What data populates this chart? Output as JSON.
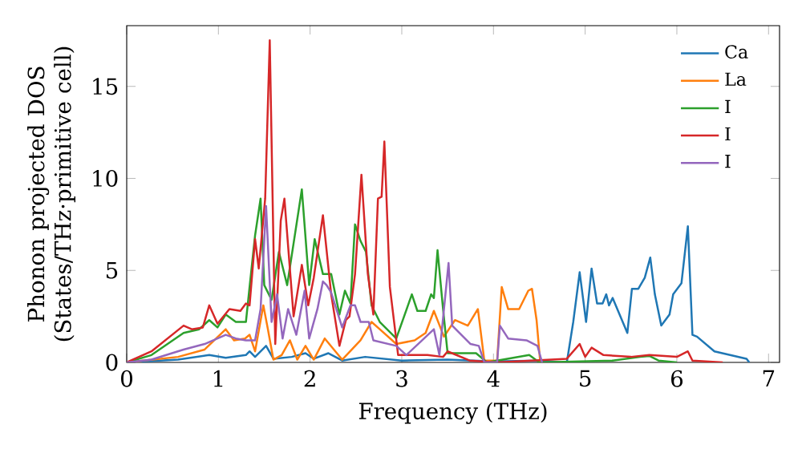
{
  "chart_data": {
    "type": "line",
    "xlabel": "Frequency (THz)",
    "ylabel": "Phonon projected DOS (States/THz·primitive cell)",
    "xlim": [
      0,
      7.12
    ],
    "ylim": [
      0,
      18.3
    ],
    "xticks": [
      0,
      1,
      2,
      3,
      4,
      5,
      6,
      7
    ],
    "yticks": [
      0,
      5,
      10,
      15
    ],
    "grid": false,
    "legend": "top right",
    "marker": "none",
    "line_style": "solid",
    "series": [
      {
        "name": "Ca",
        "color": "#1f77b4",
        "x": [
          0,
          0.56,
          0.9,
          1.08,
          1.3,
          1.34,
          1.4,
          1.52,
          1.6,
          1.8,
          1.95,
          2.04,
          2.2,
          2.35,
          2.6,
          3.0,
          3.5,
          4.0,
          4.5,
          4.75,
          4.8,
          4.87,
          4.94,
          5.01,
          5.07,
          5.13,
          5.19,
          5.23,
          5.26,
          5.3,
          5.46,
          5.51,
          5.58,
          5.65,
          5.71,
          5.76,
          5.83,
          5.92,
          5.96,
          6.05,
          6.12,
          6.17,
          6.22,
          6.41,
          6.76,
          6.79
        ],
        "values": [
          0,
          0.15,
          0.4,
          0.25,
          0.4,
          0.6,
          0.3,
          0.9,
          0.2,
          0.3,
          0.5,
          0.2,
          0.5,
          0.1,
          0.3,
          0.1,
          0.15,
          0.05,
          0.1,
          0,
          0,
          2.2,
          4.9,
          2.2,
          5.1,
          3.2,
          3.2,
          3.7,
          3.1,
          3.5,
          1.6,
          4.0,
          4.0,
          4.6,
          5.7,
          3.7,
          2.0,
          2.6,
          3.7,
          4.3,
          7.4,
          1.5,
          1.4,
          0.6,
          0.2,
          0
        ]
      },
      {
        "name": "La",
        "color": "#ff7f0e",
        "x": [
          0,
          0.56,
          0.85,
          1.08,
          1.17,
          1.29,
          1.34,
          1.4,
          1.49,
          1.54,
          1.6,
          1.69,
          1.78,
          1.86,
          1.95,
          2.04,
          2.16,
          2.35,
          2.55,
          2.67,
          2.76,
          2.94,
          3.14,
          3.26,
          3.35,
          3.46,
          3.58,
          3.72,
          3.83,
          3.9,
          4.04,
          4.09,
          4.16,
          4.28,
          4.38,
          4.42,
          4.47,
          4.51
        ],
        "values": [
          0,
          0.3,
          0.7,
          1.8,
          1.2,
          1.3,
          1.5,
          0.6,
          3.1,
          1.8,
          0.15,
          0.4,
          1.2,
          0.15,
          0.9,
          0.15,
          1.3,
          0.15,
          1.2,
          2.2,
          1.8,
          1.0,
          1.2,
          1.6,
          2.8,
          1.4,
          2.3,
          2.0,
          2.9,
          0.1,
          0.1,
          4.1,
          2.9,
          2.9,
          3.9,
          4.0,
          2.3,
          0
        ]
      },
      {
        "name": "I",
        "color": "#2ca02c",
        "x": [
          0,
          0.27,
          0.62,
          0.79,
          0.9,
          0.99,
          1.08,
          1.19,
          1.3,
          1.34,
          1.4,
          1.46,
          1.5,
          1.58,
          1.66,
          1.75,
          1.91,
          1.99,
          2.05,
          2.14,
          2.23,
          2.32,
          2.38,
          2.44,
          2.49,
          2.55,
          2.61,
          2.67,
          2.76,
          2.94,
          3.11,
          3.17,
          3.26,
          3.32,
          3.35,
          3.39,
          3.45,
          3.5,
          3.81,
          3.93,
          4.04,
          4.39,
          4.5,
          5.3,
          5.6,
          5.7,
          5.8,
          6.0
        ],
        "values": [
          0,
          0.4,
          1.6,
          1.8,
          2.3,
          1.9,
          2.6,
          2.2,
          2.2,
          4.1,
          6.9,
          8.9,
          4.2,
          3.4,
          6.0,
          4.2,
          9.4,
          4.2,
          6.7,
          4.8,
          4.8,
          2.6,
          3.9,
          3.2,
          7.5,
          6.6,
          6.0,
          3.1,
          2.2,
          1.3,
          3.7,
          2.8,
          2.8,
          3.7,
          3.5,
          6.1,
          2.9,
          0.5,
          0.5,
          0,
          0.1,
          0.4,
          0,
          0.1,
          0.3,
          0.35,
          0.1,
          0
        ]
      },
      {
        "name": "I",
        "color": "#d62728",
        "x": [
          0,
          0.27,
          0.62,
          0.71,
          0.83,
          0.9,
          0.99,
          1.12,
          1.24,
          1.3,
          1.34,
          1.4,
          1.44,
          1.51,
          1.56,
          1.62,
          1.68,
          1.72,
          1.82,
          1.91,
          1.98,
          2.04,
          2.14,
          2.23,
          2.32,
          2.39,
          2.43,
          2.49,
          2.56,
          2.63,
          2.69,
          2.74,
          2.78,
          2.81,
          2.87,
          2.96,
          3.28,
          3.45,
          3.5,
          3.74,
          4.04,
          4.8,
          4.94,
          5.0,
          5.07,
          5.2,
          5.5,
          5.7,
          6.0,
          6.12,
          6.17,
          6.5
        ],
        "values": [
          0,
          0.6,
          2.0,
          1.8,
          1.9,
          3.1,
          2.1,
          2.9,
          2.8,
          3.2,
          3.1,
          6.7,
          5.1,
          8.9,
          17.5,
          1.0,
          7.7,
          8.9,
          2.5,
          5.3,
          3.1,
          4.6,
          8.0,
          3.7,
          0.9,
          2.3,
          2.5,
          4.8,
          10.2,
          4.8,
          2.6,
          8.9,
          9.0,
          12.0,
          4.1,
          0.4,
          0.4,
          0.3,
          0.6,
          0.1,
          0,
          0.2,
          1.0,
          0.3,
          0.8,
          0.4,
          0.3,
          0.4,
          0.3,
          0.6,
          0.1,
          0
        ]
      },
      {
        "name": "I",
        "color": "#9467bd",
        "x": [
          0,
          0.27,
          0.62,
          0.85,
          0.99,
          1.08,
          1.19,
          1.3,
          1.4,
          1.46,
          1.52,
          1.58,
          1.64,
          1.7,
          1.76,
          1.85,
          1.94,
          1.99,
          2.08,
          2.14,
          2.18,
          2.23,
          2.35,
          2.44,
          2.49,
          2.55,
          2.64,
          2.69,
          2.94,
          3.05,
          3.35,
          3.41,
          3.51,
          3.55,
          3.75,
          3.84,
          3.9,
          4.04,
          4.07,
          4.16,
          4.36,
          4.48,
          4.53
        ],
        "values": [
          0,
          0.15,
          0.7,
          1.0,
          1.3,
          1.5,
          1.3,
          1.2,
          1.2,
          2.9,
          8.5,
          2.2,
          3.7,
          1.3,
          2.9,
          1.5,
          3.9,
          1.3,
          2.9,
          4.4,
          4.2,
          3.8,
          1.9,
          3.1,
          3.1,
          2.2,
          2.2,
          1.2,
          0.9,
          0.4,
          1.8,
          0.4,
          5.4,
          2.0,
          1.0,
          0.9,
          0,
          0,
          2.0,
          1.3,
          1.2,
          0.9,
          0
        ]
      }
    ]
  }
}
